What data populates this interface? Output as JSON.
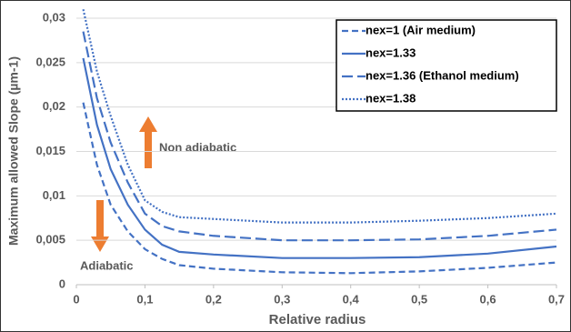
{
  "chart_data": {
    "type": "line",
    "x_label": "Relative radius",
    "y_label": "Maximum allowed Slope (µm-1)",
    "x": [
      0.01,
      0.03,
      0.05,
      0.075,
      0.1,
      0.125,
      0.15,
      0.2,
      0.3,
      0.4,
      0.5,
      0.6,
      0.7
    ],
    "series": [
      {
        "name": "nex=1 (Air medium)",
        "color": "#4472c4",
        "line_style": "dashed",
        "values": [
          0.0205,
          0.0135,
          0.009,
          0.006,
          0.004,
          0.0029,
          0.0022,
          0.0018,
          0.0014,
          0.0013,
          0.0015,
          0.0019,
          0.0025
        ]
      },
      {
        "name": "nex=1.33",
        "color": "#4472c4",
        "line_style": "solid",
        "values": [
          0.0255,
          0.018,
          0.013,
          0.009,
          0.0062,
          0.0045,
          0.0037,
          0.0034,
          0.003,
          0.003,
          0.0031,
          0.0035,
          0.0043
        ]
      },
      {
        "name": "nex=1.36 (Ethanol medium)",
        "color": "#4472c4",
        "line_style": "long-dashed",
        "values": [
          0.0285,
          0.021,
          0.016,
          0.0115,
          0.008,
          0.0066,
          0.006,
          0.0055,
          0.005,
          0.005,
          0.0051,
          0.0055,
          0.0062
        ]
      },
      {
        "name": "nex=1.38",
        "color": "#4472c4",
        "line_style": "dotted",
        "values": [
          0.031,
          0.024,
          0.019,
          0.0135,
          0.0095,
          0.0082,
          0.0076,
          0.0074,
          0.007,
          0.007,
          0.0072,
          0.0075,
          0.008
        ]
      }
    ],
    "xlim": [
      0,
      0.7
    ],
    "xticks": [
      0,
      {
        "value": 0.1,
        "label": "0,1"
      },
      {
        "value": 0.2,
        "label": "0,2"
      },
      {
        "value": 0.3,
        "label": "0,3"
      },
      {
        "value": 0.4,
        "label": "0,4"
      },
      {
        "value": 0.5,
        "label": "0,5"
      },
      {
        "value": 0.6,
        "label": "0,6"
      },
      {
        "value": 0.7,
        "label": "0,7"
      }
    ],
    "ylim": [
      0,
      0.03
    ],
    "yticks": [
      0,
      {
        "value": 0.005,
        "label": "0,005"
      },
      {
        "value": 0.01,
        "label": "0,01"
      },
      {
        "value": 0.015,
        "label": "0,015"
      },
      {
        "value": 0.02,
        "label": "0,02"
      },
      {
        "value": 0.025,
        "label": "0,025"
      },
      {
        "value": 0.03,
        "label": "0,03"
      }
    ],
    "grid": true,
    "legend_position": "top-right",
    "annotations": [
      "Non adiabatic",
      "Adiabatic"
    ]
  }
}
